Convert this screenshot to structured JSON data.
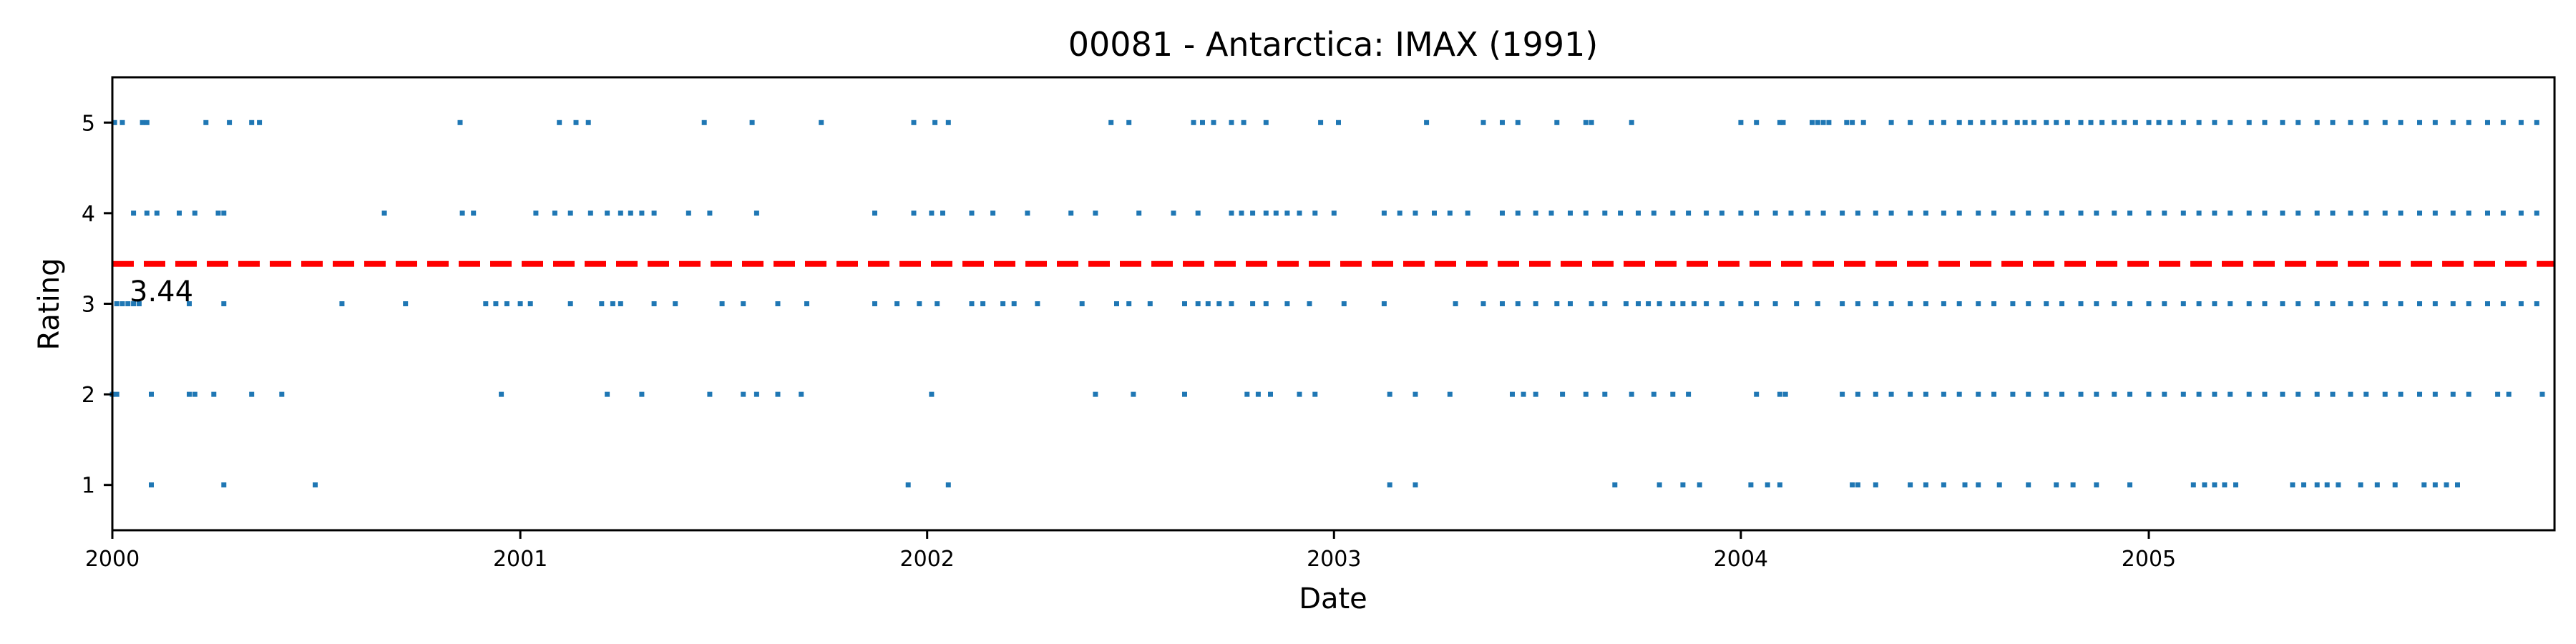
{
  "chart_data": {
    "type": "scatter",
    "title": "00081 - Antarctica: IMAX (1991)",
    "xlabel": "Date",
    "ylabel": "Rating",
    "xlim": [
      "2000-01-01",
      "2005-12-31"
    ],
    "ylim": [
      0.5,
      5.5
    ],
    "x_ticks": [
      "2000",
      "2001",
      "2002",
      "2003",
      "2004",
      "2005"
    ],
    "y_ticks": [
      "1",
      "2",
      "3",
      "4",
      "5"
    ],
    "grid": false,
    "colors": {
      "points": "#1f77b4",
      "mean_line": "#ff0000",
      "axes": "#000000"
    },
    "mean": {
      "value": 3.44,
      "label": "3.44"
    },
    "series": [
      {
        "rating": 5,
        "dates": [
          "2000-01-03",
          "2000-01-10",
          "2000-01-28",
          "2000-02-01",
          "2000-03-25",
          "2000-04-15",
          "2000-05-05",
          "2000-05-12",
          "2000-11-08",
          "2001-02-05",
          "2001-02-20",
          "2001-03-03",
          "2001-06-15",
          "2001-07-28",
          "2001-09-28",
          "2001-12-20",
          "2002-01-08",
          "2002-01-20",
          "2002-06-15",
          "2002-07-01",
          "2002-08-28",
          "2002-09-05",
          "2002-09-15",
          "2002-10-01",
          "2002-10-12",
          "2002-11-01",
          "2002-12-20",
          "2003-01-05",
          "2003-03-25",
          "2003-05-15",
          "2003-06-01",
          "2003-06-15",
          "2003-07-20",
          "2003-08-15",
          "2003-08-20",
          "2003-09-25",
          "2004-01-01",
          "2004-01-15",
          "2004-02-05",
          "2004-02-08",
          "2004-03-05",
          "2004-03-10",
          "2004-03-15",
          "2004-03-20",
          "2004-04-05",
          "2004-04-10",
          "2004-04-20",
          "2004-05-15",
          "2004-06-01",
          "2004-06-20",
          "2004-07-01",
          "2004-07-15",
          "2004-07-25",
          "2004-08-05",
          "2004-08-15",
          "2004-08-25",
          "2004-09-05",
          "2004-09-12",
          "2004-09-20",
          "2004-10-01",
          "2004-10-10",
          "2004-10-20",
          "2004-11-01",
          "2004-11-10",
          "2004-11-20",
          "2004-12-01",
          "2004-12-10",
          "2004-12-20",
          "2005-01-01",
          "2005-01-10",
          "2005-01-20",
          "2005-02-01",
          "2005-02-15",
          "2005-03-01",
          "2005-03-15",
          "2005-04-01",
          "2005-04-15",
          "2005-05-01",
          "2005-05-15",
          "2005-06-01",
          "2005-06-15",
          "2005-07-01",
          "2005-07-15",
          "2005-08-01",
          "2005-08-15",
          "2005-09-01",
          "2005-09-15",
          "2005-10-01",
          "2005-10-15",
          "2005-11-01",
          "2005-11-15",
          "2005-12-01",
          "2005-12-15"
        ]
      },
      {
        "rating": 4,
        "dates": [
          "2000-01-20",
          "2000-02-01",
          "2000-02-10",
          "2000-03-01",
          "2000-03-15",
          "2000-04-05",
          "2000-04-10",
          "2000-09-01",
          "2000-11-10",
          "2000-11-20",
          "2001-01-15",
          "2001-02-01",
          "2001-02-15",
          "2001-03-05",
          "2001-03-20",
          "2001-04-01",
          "2001-04-10",
          "2001-04-20",
          "2001-05-01",
          "2001-06-01",
          "2001-06-20",
          "2001-08-01",
          "2001-11-15",
          "2001-12-20",
          "2002-01-05",
          "2002-01-15",
          "2002-02-10",
          "2002-03-01",
          "2002-04-01",
          "2002-05-10",
          "2002-06-01",
          "2002-07-10",
          "2002-08-10",
          "2002-09-01",
          "2002-10-01",
          "2002-10-10",
          "2002-10-20",
          "2002-11-01",
          "2002-11-10",
          "2002-11-20",
          "2002-12-01",
          "2002-12-15",
          "2003-01-01",
          "2003-02-15",
          "2003-03-01",
          "2003-03-15",
          "2003-04-01",
          "2003-04-15",
          "2003-05-01",
          "2003-06-01",
          "2003-06-15",
          "2003-07-01",
          "2003-07-15",
          "2003-08-01",
          "2003-08-15",
          "2003-09-01",
          "2003-09-15",
          "2003-10-01",
          "2003-10-15",
          "2003-11-01",
          "2003-11-15",
          "2003-12-01",
          "2003-12-15",
          "2004-01-01",
          "2004-01-15",
          "2004-02-01",
          "2004-02-15",
          "2004-03-01",
          "2004-03-15",
          "2004-04-01",
          "2004-04-15",
          "2004-05-01",
          "2004-05-15",
          "2004-06-01",
          "2004-06-15",
          "2004-07-01",
          "2004-07-15",
          "2004-08-01",
          "2004-08-15",
          "2004-09-01",
          "2004-09-15",
          "2004-10-01",
          "2004-10-15",
          "2004-11-01",
          "2004-11-15",
          "2004-12-01",
          "2004-12-15",
          "2005-01-01",
          "2005-01-15",
          "2005-02-01",
          "2005-02-15",
          "2005-03-01",
          "2005-03-15",
          "2005-04-01",
          "2005-04-15",
          "2005-05-01",
          "2005-05-15",
          "2005-06-01",
          "2005-06-15",
          "2005-07-01",
          "2005-07-15",
          "2005-08-01",
          "2005-08-15",
          "2005-09-01",
          "2005-09-15",
          "2005-10-01",
          "2005-10-15",
          "2005-11-01",
          "2005-11-15",
          "2005-12-01",
          "2005-12-15"
        ]
      },
      {
        "rating": 3,
        "dates": [
          "2000-01-05",
          "2000-01-10",
          "2000-01-15",
          "2000-01-20",
          "2000-01-25",
          "2000-03-10",
          "2000-04-10",
          "2000-07-25",
          "2000-09-20",
          "2000-12-01",
          "2000-12-10",
          "2000-12-20",
          "2001-01-01",
          "2001-01-10",
          "2001-02-15",
          "2001-03-15",
          "2001-03-25",
          "2001-04-01",
          "2001-05-01",
          "2001-05-20",
          "2001-07-01",
          "2001-07-20",
          "2001-08-20",
          "2001-09-15",
          "2001-11-15",
          "2001-12-05",
          "2001-12-25",
          "2002-01-10",
          "2002-02-10",
          "2002-02-20",
          "2002-03-10",
          "2002-03-20",
          "2002-04-10",
          "2002-05-20",
          "2002-06-20",
          "2002-07-01",
          "2002-07-20",
          "2002-08-20",
          "2002-09-01",
          "2002-09-10",
          "2002-09-20",
          "2002-10-01",
          "2002-10-20",
          "2002-11-01",
          "2002-11-20",
          "2002-12-10",
          "2003-01-10",
          "2003-02-15",
          "2003-04-20",
          "2003-05-15",
          "2003-06-01",
          "2003-06-15",
          "2003-07-01",
          "2003-07-20",
          "2003-08-01",
          "2003-08-20",
          "2003-09-01",
          "2003-09-20",
          "2003-10-01",
          "2003-10-10",
          "2003-10-20",
          "2003-11-01",
          "2003-11-10",
          "2003-11-20",
          "2003-12-01",
          "2003-12-15",
          "2004-01-01",
          "2004-01-15",
          "2004-02-01",
          "2004-02-20",
          "2004-03-10",
          "2004-04-01",
          "2004-04-15",
          "2004-05-01",
          "2004-05-15",
          "2004-06-01",
          "2004-06-15",
          "2004-07-01",
          "2004-07-15",
          "2004-08-01",
          "2004-08-15",
          "2004-09-01",
          "2004-09-15",
          "2004-10-01",
          "2004-10-15",
          "2004-11-01",
          "2004-11-15",
          "2004-12-01",
          "2004-12-15",
          "2005-01-01",
          "2005-01-15",
          "2005-02-01",
          "2005-02-15",
          "2005-03-01",
          "2005-03-15",
          "2005-04-01",
          "2005-04-15",
          "2005-05-01",
          "2005-05-15",
          "2005-06-01",
          "2005-06-15",
          "2005-07-01",
          "2005-07-15",
          "2005-08-01",
          "2005-08-15",
          "2005-09-01",
          "2005-09-15",
          "2005-10-01",
          "2005-10-15",
          "2005-11-01",
          "2005-11-15",
          "2005-12-01",
          "2005-12-15"
        ]
      },
      {
        "rating": 2,
        "dates": [
          "2000-01-01",
          "2000-01-05",
          "2000-02-05",
          "2000-03-10",
          "2000-03-15",
          "2000-04-01",
          "2000-05-05",
          "2000-06-01",
          "2000-12-15",
          "2001-03-20",
          "2001-04-20",
          "2001-06-20",
          "2001-07-20",
          "2001-08-01",
          "2001-08-20",
          "2001-09-10",
          "2002-01-05",
          "2002-06-01",
          "2002-07-05",
          "2002-08-20",
          "2002-10-15",
          "2002-10-25",
          "2002-11-05",
          "2002-12-01",
          "2002-12-15",
          "2003-02-20",
          "2003-03-15",
          "2003-04-15",
          "2003-06-10",
          "2003-06-20",
          "2003-07-01",
          "2003-07-25",
          "2003-08-15",
          "2003-09-01",
          "2003-09-25",
          "2003-10-15",
          "2003-11-01",
          "2003-11-15",
          "2004-01-15",
          "2004-02-05",
          "2004-02-10",
          "2004-04-01",
          "2004-04-15",
          "2004-05-01",
          "2004-05-15",
          "2004-06-01",
          "2004-06-15",
          "2004-07-01",
          "2004-07-15",
          "2004-08-01",
          "2004-08-15",
          "2004-09-01",
          "2004-09-15",
          "2004-10-01",
          "2004-10-15",
          "2004-11-01",
          "2004-11-15",
          "2004-12-01",
          "2004-12-15",
          "2005-01-01",
          "2005-01-15",
          "2005-02-01",
          "2005-02-15",
          "2005-03-01",
          "2005-03-15",
          "2005-04-01",
          "2005-04-15",
          "2005-05-01",
          "2005-05-15",
          "2005-06-01",
          "2005-06-15",
          "2005-07-01",
          "2005-07-15",
          "2005-08-01",
          "2005-08-15",
          "2005-09-01",
          "2005-09-15",
          "2005-10-01",
          "2005-10-15",
          "2005-11-10",
          "2005-11-20",
          "2005-12-20"
        ]
      },
      {
        "rating": 1,
        "dates": [
          "2000-02-05",
          "2000-04-10",
          "2000-07-01",
          "2001-12-15",
          "2002-01-20",
          "2003-02-20",
          "2003-03-15",
          "2003-09-10",
          "2003-10-20",
          "2003-11-10",
          "2003-11-25",
          "2004-01-10",
          "2004-01-25",
          "2004-02-05",
          "2004-04-10",
          "2004-04-15",
          "2004-05-01",
          "2004-06-01",
          "2004-06-15",
          "2004-07-01",
          "2004-07-20",
          "2004-08-01",
          "2004-08-20",
          "2004-09-15",
          "2004-10-10",
          "2004-10-25",
          "2004-11-15",
          "2004-12-15",
          "2005-02-10",
          "2005-02-20",
          "2005-03-01",
          "2005-03-10",
          "2005-03-20",
          "2005-05-10",
          "2005-05-20",
          "2005-06-01",
          "2005-06-10",
          "2005-06-20",
          "2005-07-10",
          "2005-07-25",
          "2005-08-10",
          "2005-09-05",
          "2005-09-15",
          "2005-09-25",
          "2005-10-05"
        ]
      }
    ]
  }
}
